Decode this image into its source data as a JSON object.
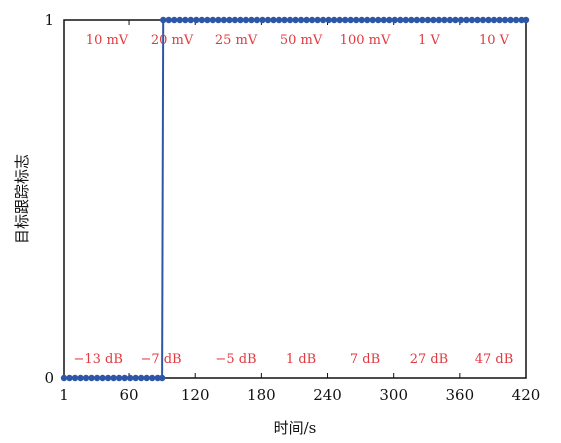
{
  "chart_data": {
    "type": "line",
    "xlabel": "时间/s",
    "ylabel": "目标跟踪标志",
    "xlim": [
      1,
      420
    ],
    "ylim": [
      0,
      1
    ],
    "x_ticks": [
      1,
      60,
      120,
      180,
      240,
      300,
      360,
      420
    ],
    "y_ticks": [
      0,
      1
    ],
    "grid": false,
    "colors": {
      "series": "#2e56a6",
      "annotation": "#e0393e"
    },
    "series": [
      {
        "x": [
          1,
          6,
          11,
          16,
          21,
          26,
          31,
          36,
          41,
          46,
          51,
          56,
          61,
          66,
          71,
          76,
          81,
          86,
          90,
          91,
          96,
          101,
          106,
          111,
          116,
          121,
          126,
          131,
          136,
          141,
          146,
          151,
          156,
          161,
          166,
          171,
          176,
          181,
          186,
          191,
          196,
          201,
          206,
          211,
          216,
          221,
          226,
          231,
          236,
          241,
          246,
          251,
          256,
          261,
          266,
          271,
          276,
          281,
          286,
          291,
          296,
          301,
          306,
          311,
          316,
          321,
          326,
          331,
          336,
          341,
          346,
          351,
          356,
          361,
          366,
          371,
          376,
          381,
          386,
          391,
          396,
          401,
          406,
          411,
          416,
          420
        ],
        "y": [
          0,
          0,
          0,
          0,
          0,
          0,
          0,
          0,
          0,
          0,
          0,
          0,
          0,
          0,
          0,
          0,
          0,
          0,
          0,
          1,
          1,
          1,
          1,
          1,
          1,
          1,
          1,
          1,
          1,
          1,
          1,
          1,
          1,
          1,
          1,
          1,
          1,
          1,
          1,
          1,
          1,
          1,
          1,
          1,
          1,
          1,
          1,
          1,
          1,
          1,
          1,
          1,
          1,
          1,
          1,
          1,
          1,
          1,
          1,
          1,
          1,
          1,
          1,
          1,
          1,
          1,
          1,
          1,
          1,
          1,
          1,
          1,
          1,
          1,
          1,
          1,
          1,
          1,
          1,
          1,
          1,
          1,
          1,
          1,
          1,
          1
        ]
      }
    ],
    "top_annotations": [
      {
        "text": "10 mV",
        "x": 40
      },
      {
        "text": "20 mV",
        "x": 99
      },
      {
        "text": "25 mV",
        "x": 157
      },
      {
        "text": "50 mV",
        "x": 216
      },
      {
        "text": "100 mV",
        "x": 274
      },
      {
        "text": "1 V",
        "x": 332
      },
      {
        "text": "10 V",
        "x": 391
      }
    ],
    "bottom_annotations": [
      {
        "text": "−13 dB",
        "x": 32
      },
      {
        "text": "−7 dB",
        "x": 89
      },
      {
        "text": "−5 dB",
        "x": 157
      },
      {
        "text": "1 dB",
        "x": 216
      },
      {
        "text": "7 dB",
        "x": 274
      },
      {
        "text": "27 dB",
        "x": 332
      },
      {
        "text": "47 dB",
        "x": 391
      }
    ]
  }
}
